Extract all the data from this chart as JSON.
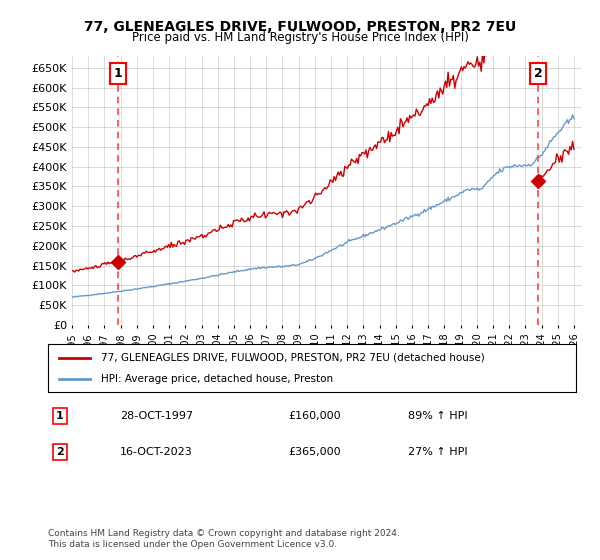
{
  "title": "77, GLENEAGLES DRIVE, FULWOOD, PRESTON, PR2 7EU",
  "subtitle": "Price paid vs. HM Land Registry's House Price Index (HPI)",
  "ylabel_ticks": [
    "£0",
    "£50K",
    "£100K",
    "£150K",
    "£200K",
    "£250K",
    "£300K",
    "£350K",
    "£400K",
    "£450K",
    "£500K",
    "£550K",
    "£600K",
    "£650K"
  ],
  "ytick_values": [
    0,
    50000,
    100000,
    150000,
    200000,
    250000,
    300000,
    350000,
    400000,
    450000,
    500000,
    550000,
    600000,
    650000
  ],
  "xlim": [
    1995.0,
    2026.5
  ],
  "ylim": [
    0,
    680000
  ],
  "sale1_date": 1997.83,
  "sale1_price": 160000,
  "sale1_label": "28-OCT-1997",
  "sale1_pct": "89% ↑ HPI",
  "sale2_date": 2023.79,
  "sale2_price": 365000,
  "sale2_label": "16-OCT-2023",
  "sale2_pct": "27% ↑ HPI",
  "line_color_red": "#cc0000",
  "line_color_blue": "#6699cc",
  "marker_color": "#cc0000",
  "vline_color": "#ff4444",
  "legend_label_red": "77, GLENEAGLES DRIVE, FULWOOD, PRESTON, PR2 7EU (detached house)",
  "legend_label_blue": "HPI: Average price, detached house, Preston",
  "footer": "Contains HM Land Registry data © Crown copyright and database right 2024.\nThis data is licensed under the Open Government Licence v3.0.",
  "background_color": "#ffffff",
  "grid_color": "#cccccc",
  "xtick_years": [
    1995,
    1996,
    1997,
    1998,
    1999,
    2000,
    2001,
    2002,
    2003,
    2004,
    2005,
    2006,
    2007,
    2008,
    2009,
    2010,
    2011,
    2012,
    2013,
    2014,
    2015,
    2016,
    2017,
    2018,
    2019,
    2020,
    2021,
    2022,
    2023,
    2024,
    2025,
    2026
  ]
}
